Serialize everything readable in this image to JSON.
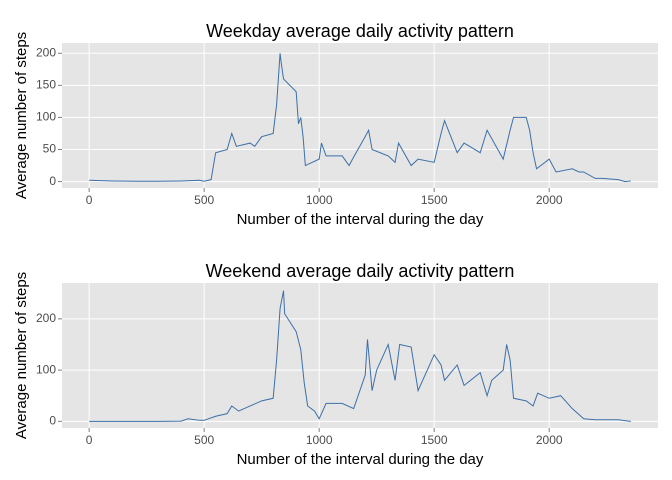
{
  "chart_data": [
    {
      "type": "line",
      "title": "Weekday average daily activity pattern",
      "x_label": "Number of the interval during the day",
      "y_label": "Average number of steps",
      "color": "#3d6fa8",
      "grid": true,
      "x": [
        0,
        100,
        200,
        300,
        400,
        480,
        500,
        530,
        550,
        600,
        620,
        640,
        700,
        720,
        750,
        800,
        815,
        830,
        835,
        845,
        900,
        910,
        920,
        930,
        940,
        1000,
        1010,
        1030,
        1100,
        1130,
        1145,
        1200,
        1215,
        1230,
        1300,
        1330,
        1345,
        1400,
        1430,
        1500,
        1530,
        1545,
        1600,
        1630,
        1700,
        1730,
        1800,
        1830,
        1845,
        1900,
        1915,
        1930,
        1945,
        2000,
        2030,
        2100,
        2130,
        2150,
        2200,
        2230,
        2300,
        2330,
        2355
      ],
      "values": [
        2,
        1,
        0.5,
        0.5,
        1,
        2,
        0.5,
        3,
        45,
        50,
        75,
        55,
        60,
        55,
        70,
        75,
        120,
        200,
        185,
        160,
        140,
        90,
        100,
        70,
        25,
        35,
        60,
        40,
        40,
        25,
        35,
        70,
        80,
        50,
        40,
        30,
        60,
        25,
        35,
        30,
        75,
        95,
        45,
        60,
        45,
        80,
        35,
        80,
        100,
        100,
        80,
        45,
        20,
        35,
        15,
        20,
        15,
        15,
        5,
        5,
        3,
        0,
        1
      ],
      "xlim": [
        -118,
        2473
      ],
      "xticks": [
        0,
        500,
        1000,
        1500,
        2000
      ],
      "ylim": [
        -10,
        216
      ],
      "yticks": [
        0,
        50,
        100,
        150,
        200
      ]
    },
    {
      "type": "line",
      "title": "Weekend average daily activity pattern",
      "x_label": "Number of the interval during the day",
      "y_label": "Average number of steps",
      "color": "#3d6fa8",
      "grid": true,
      "x": [
        0,
        100,
        200,
        300,
        400,
        430,
        480,
        500,
        550,
        600,
        620,
        650,
        700,
        750,
        800,
        815,
        830,
        845,
        850,
        900,
        920,
        935,
        950,
        980,
        1000,
        1030,
        1100,
        1150,
        1200,
        1210,
        1230,
        1250,
        1300,
        1330,
        1350,
        1400,
        1430,
        1500,
        1530,
        1545,
        1600,
        1630,
        1700,
        1730,
        1750,
        1800,
        1815,
        1830,
        1845,
        1900,
        1930,
        1950,
        2000,
        2050,
        2100,
        2150,
        2200,
        2300,
        2355
      ],
      "values": [
        0,
        0,
        0,
        0,
        0.5,
        5,
        2,
        2,
        10,
        15,
        30,
        20,
        30,
        40,
        45,
        120,
        220,
        255,
        210,
        175,
        140,
        75,
        30,
        20,
        5,
        35,
        35,
        25,
        90,
        160,
        60,
        100,
        150,
        80,
        150,
        145,
        60,
        130,
        110,
        80,
        110,
        70,
        95,
        50,
        80,
        100,
        150,
        120,
        45,
        40,
        30,
        55,
        45,
        50,
        25,
        5,
        3,
        3,
        0
      ],
      "xlim": [
        -118,
        2473
      ],
      "xticks": [
        0,
        500,
        1000,
        1500,
        2000
      ],
      "ylim": [
        -13,
        270
      ],
      "yticks": [
        0,
        100,
        200
      ]
    }
  ]
}
